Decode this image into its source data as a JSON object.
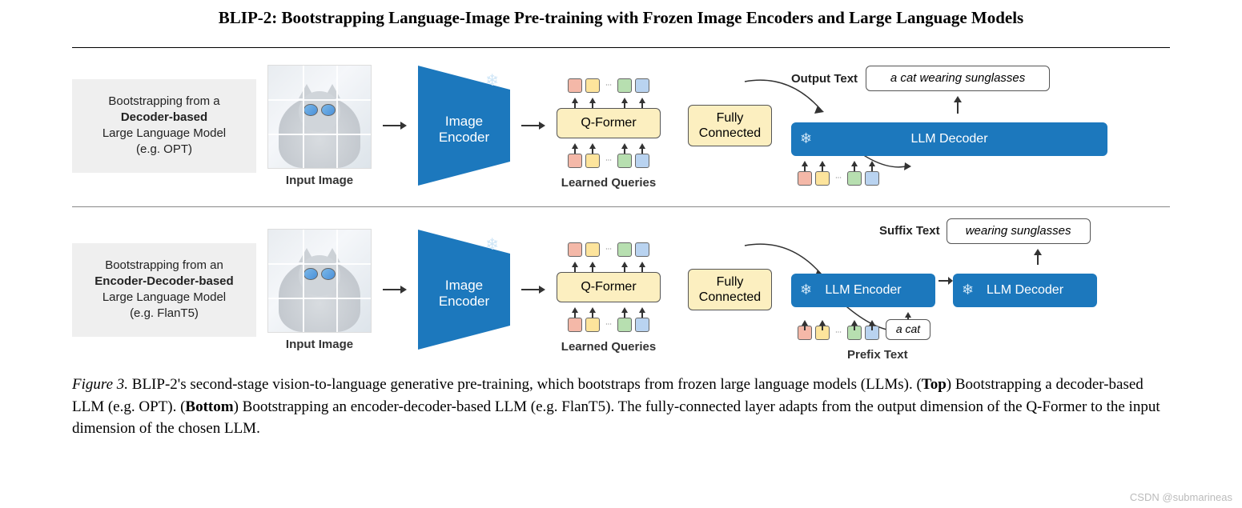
{
  "title": "BLIP-2: Bootstrapping Language-Image Pre-training with Frozen Image Encoders and Large Language Models",
  "watermark": "CSDN @submarineas",
  "caption": {
    "prefix": "Figure 3.",
    "text_a": " BLIP-2's second-stage vision-to-language generative pre-training, which bootstraps from frozen large language models (LLMs). (",
    "top_b": "Top",
    "text_b": ") Bootstrapping a decoder-based LLM (e.g. OPT). (",
    "bottom_b": "Bottom",
    "text_c": ") Bootstrapping an encoder-decoder-based LLM (e.g. FlanT5). The fully-connected layer adapts from the output dimension of the Q-Former to the input dimension of the chosen LLM."
  },
  "colors": {
    "blue_block": "#1c78bd",
    "yellow_block": "#fcefc0",
    "grey_block": "#efefef",
    "token_pink": "#f4b8a8",
    "token_yellow": "#fde49c",
    "token_green": "#b7dfb0",
    "token_blue": "#b9d3f0",
    "arrow": "#333333",
    "snowflake": "#cfe6f7",
    "border": "#555555",
    "text": "#222222"
  },
  "row1": {
    "desc_line1": "Bootstrapping from a",
    "desc_bold": "Decoder-based",
    "desc_line3": "Large Language Model",
    "desc_line4": "(e.g. OPT)",
    "input_label": "Input Image",
    "encoder_label": "Image Encoder",
    "qformer_label": "Q-Former",
    "fc_label": "Fully Connected",
    "learned_queries_label": "Learned Queries",
    "output_label": "Output Text",
    "output_text": "a cat wearing sunglasses",
    "llm_label": "LLM Decoder"
  },
  "row2": {
    "desc_line1": "Bootstrapping from an",
    "desc_bold": "Encoder-Decoder-based",
    "desc_line3": "Large Language Model",
    "desc_line4": "(e.g. FlanT5)",
    "input_label": "Input Image",
    "encoder_label": "Image Encoder",
    "qformer_label": "Q-Former",
    "fc_label": "Fully Connected",
    "learned_queries_label": "Learned Queries",
    "suffix_label": "Suffix Text",
    "suffix_text": "wearing sunglasses",
    "prefix_label": "Prefix Text",
    "prefix_text": "a cat",
    "llm_enc_label": "LLM Encoder",
    "llm_dec_label": "LLM Decoder"
  },
  "tokens": {
    "sequence_colors": [
      "#f4b8a8",
      "#fde49c",
      "dots",
      "#b7dfb0",
      "#b9d3f0"
    ]
  }
}
